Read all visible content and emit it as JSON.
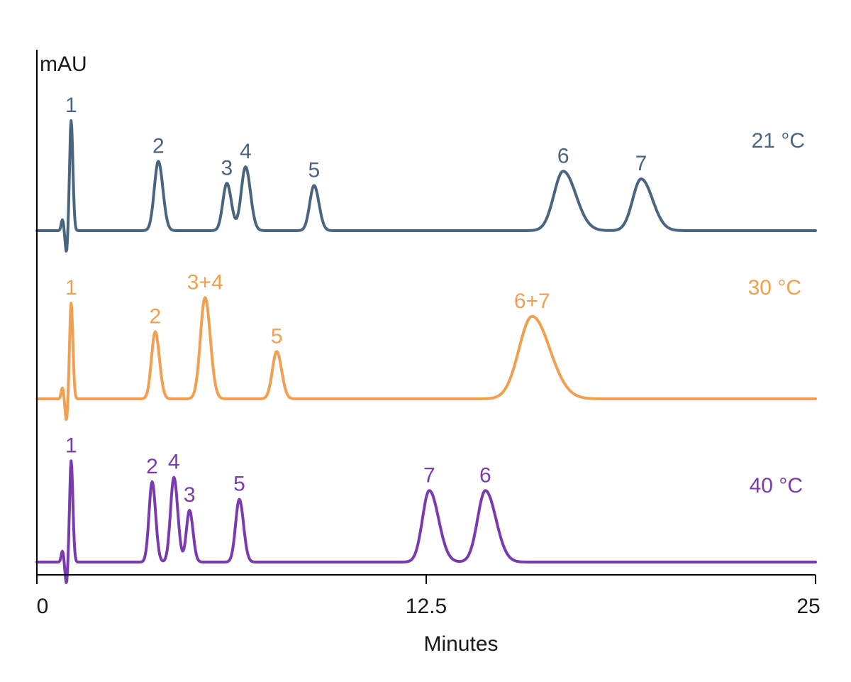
{
  "chart_data": {
    "type": "line",
    "title": "",
    "xlabel": "Minutes",
    "ylabel": "mAU",
    "xlim": [
      0,
      25
    ],
    "x_ticks": [
      "0",
      "12.5",
      "25"
    ],
    "x_tick_values": [
      0,
      12.5,
      25
    ],
    "series": [
      {
        "name": "21 °C",
        "color": "#4a6580",
        "peaks": [
          {
            "label": "1",
            "time": 1.1,
            "height": 10,
            "width": 0.05
          },
          {
            "label": "2",
            "time": 3.9,
            "height": 6.3,
            "width": 0.13
          },
          {
            "label": "3",
            "time": 6.1,
            "height": 4.3,
            "width": 0.13
          },
          {
            "label": "4",
            "time": 6.7,
            "height": 5.8,
            "width": 0.14
          },
          {
            "label": "5",
            "time": 8.9,
            "height": 4.1,
            "width": 0.14
          },
          {
            "label": "6",
            "time": 16.9,
            "height": 5.4,
            "width": 0.3
          },
          {
            "label": "7",
            "time": 19.4,
            "height": 4.7,
            "width": 0.27
          }
        ]
      },
      {
        "name": "30 °C",
        "color": "#f0a050",
        "peaks": [
          {
            "label": "1",
            "time": 1.1,
            "height": 8.7,
            "width": 0.05
          },
          {
            "label": "2",
            "time": 3.8,
            "height": 6.1,
            "width": 0.12
          },
          {
            "label": "3+4",
            "time": 5.4,
            "height": 9.2,
            "width": 0.15
          },
          {
            "label": "5",
            "time": 7.7,
            "height": 4.3,
            "width": 0.14
          },
          {
            "label": "6+7",
            "time": 15.9,
            "height": 7.5,
            "width": 0.42
          }
        ]
      },
      {
        "name": "40 °C",
        "color": "#7a3bb0",
        "peaks": [
          {
            "label": "1",
            "time": 1.1,
            "height": 9.2,
            "width": 0.05
          },
          {
            "label": "2",
            "time": 3.7,
            "height": 7.3,
            "width": 0.1
          },
          {
            "label": "4",
            "time": 4.4,
            "height": 7.7,
            "width": 0.11
          },
          {
            "label": "3",
            "time": 4.9,
            "height": 4.7,
            "width": 0.1
          },
          {
            "label": "5",
            "time": 6.5,
            "height": 5.7,
            "width": 0.12
          },
          {
            "label": "7",
            "time": 12.6,
            "height": 6.5,
            "width": 0.22
          },
          {
            "label": "6",
            "time": 14.4,
            "height": 6.5,
            "width": 0.25
          }
        ]
      }
    ]
  }
}
